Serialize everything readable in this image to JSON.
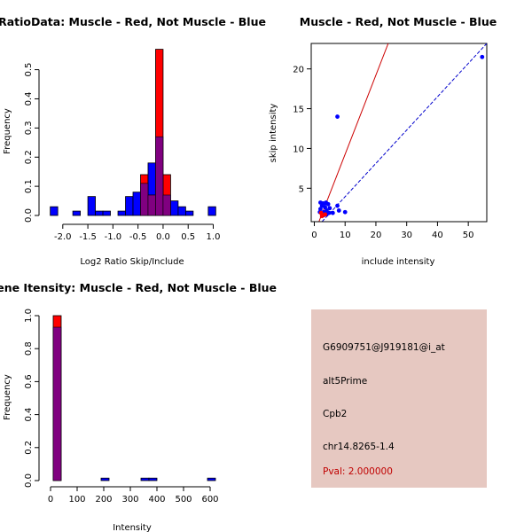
{
  "colors": {
    "muscle": "#ff0000",
    "not_muscle": "#0000ff",
    "overlap": "#800080",
    "ref_line": "#cc0000",
    "fit_line": "#0000cc",
    "panel_bg": "#e6c8c1",
    "pval_text": "#c00000"
  },
  "chart_data": [
    {
      "type": "bar",
      "subtype": "overlaid-histogram",
      "title": "RatioData: Muscle - Red, Not Muscle - Blue",
      "xlabel": "Log2 Ratio Skip/Include",
      "ylabel": "Frequency",
      "xlim": [
        -2.35,
        1.15
      ],
      "ylim": [
        0,
        0.59
      ],
      "xticks": [
        -2.0,
        -1.5,
        -1.0,
        -0.5,
        0.0,
        0.5,
        1.0
      ],
      "xtick_labels": [
        "-2.0",
        "-1.5",
        "-1.0",
        "-0.5",
        "0.0",
        "0.5",
        "1.0"
      ],
      "yticks": [
        0,
        0.1,
        0.2,
        0.3,
        0.4,
        0.5
      ],
      "ytick_labels": [
        "0.0",
        "0.1",
        "0.2",
        "0.3",
        "0.4",
        "0.5"
      ],
      "bin_width": 0.15,
      "series": [
        {
          "name": "Muscle",
          "color": "red",
          "bins": [
            {
              "x0": -0.45,
              "x1": -0.3,
              "value": 0.14
            },
            {
              "x0": -0.3,
              "x1": -0.15,
              "value": 0.07
            },
            {
              "x0": -0.15,
              "x1": 0.0,
              "value": 0.57
            },
            {
              "x0": 0.0,
              "x1": 0.15,
              "value": 0.14
            }
          ]
        },
        {
          "name": "Not Muscle",
          "color": "blue",
          "bins": [
            {
              "x0": -2.25,
              "x1": -2.1,
              "value": 0.03
            },
            {
              "x0": -1.8,
              "x1": -1.65,
              "value": 0.015
            },
            {
              "x0": -1.5,
              "x1": -1.35,
              "value": 0.065
            },
            {
              "x0": -1.35,
              "x1": -1.2,
              "value": 0.015
            },
            {
              "x0": -1.2,
              "x1": -1.05,
              "value": 0.015
            },
            {
              "x0": -0.9,
              "x1": -0.75,
              "value": 0.015
            },
            {
              "x0": -0.75,
              "x1": -0.6,
              "value": 0.065
            },
            {
              "x0": -0.6,
              "x1": -0.45,
              "value": 0.08
            },
            {
              "x0": -0.45,
              "x1": -0.3,
              "value": 0.11
            },
            {
              "x0": -0.3,
              "x1": -0.15,
              "value": 0.18
            },
            {
              "x0": -0.15,
              "x1": 0.0,
              "value": 0.27
            },
            {
              "x0": 0.0,
              "x1": 0.15,
              "value": 0.07
            },
            {
              "x0": 0.15,
              "x1": 0.3,
              "value": 0.05
            },
            {
              "x0": 0.3,
              "x1": 0.45,
              "value": 0.03
            },
            {
              "x0": 0.45,
              "x1": 0.6,
              "value": 0.015
            },
            {
              "x0": 0.9,
              "x1": 1.05,
              "value": 0.03
            }
          ]
        }
      ]
    },
    {
      "type": "scatter",
      "title": "Muscle - Red, Not Muscle - Blue",
      "xlabel": "include intensity",
      "ylabel": "skip intensity",
      "xlim": [
        -1,
        56
      ],
      "ylim": [
        0.8,
        23.2
      ],
      "xticks": [
        0,
        10,
        20,
        30,
        40,
        50
      ],
      "xtick_labels": [
        "0",
        "10",
        "20",
        "30",
        "40",
        "50"
      ],
      "yticks": [
        5,
        10,
        15,
        20
      ],
      "ytick_labels": [
        "5",
        "10",
        "15",
        "20"
      ],
      "lines": [
        {
          "name": "red reference line",
          "color": "red",
          "x": [
            1.5,
            24
          ],
          "y": [
            0.8,
            23.2
          ]
        },
        {
          "name": "blue fit line",
          "color": "blue",
          "x": [
            2.5,
            56
          ],
          "y": [
            0.8,
            23.2
          ]
        }
      ],
      "series": [
        {
          "name": "points",
          "color": "blue",
          "points": [
            [
              54.5,
              21.5
            ],
            [
              7.5,
              14.0
            ],
            [
              10.0,
              2.0
            ],
            [
              8.0,
              2.2
            ],
            [
              7.5,
              2.8
            ],
            [
              6.0,
              1.9
            ],
            [
              5.0,
              2.5
            ],
            [
              4.5,
              3.0
            ],
            [
              4.0,
              2.2
            ],
            [
              3.5,
              3.1
            ],
            [
              3.0,
              2.0
            ],
            [
              2.5,
              2.8
            ],
            [
              2.0,
              2.4
            ],
            [
              2.5,
              1.8
            ],
            [
              3.0,
              1.6
            ],
            [
              2.0,
              3.2
            ],
            [
              4.0,
              1.7
            ],
            [
              3.5,
              2.6
            ],
            [
              1.8,
              2.0
            ],
            [
              3.8,
              3.2
            ],
            [
              2.8,
              3.1
            ],
            [
              4.8,
              1.9
            ]
          ]
        },
        {
          "name": "red points",
          "color": "red",
          "points": [
            [
              2.5,
              1.5
            ],
            [
              3.5,
              1.7
            ],
            [
              2.2,
              1.9
            ]
          ]
        }
      ]
    },
    {
      "type": "bar",
      "subtype": "overlaid-histogram",
      "title": "Gene Itensity: Muscle - Red, Not Muscle - Blue",
      "xlabel": "Intensity",
      "ylabel": "Frequency",
      "xlim": [
        -20,
        640
      ],
      "ylim": [
        0,
        1.0
      ],
      "xticks": [
        0,
        100,
        200,
        300,
        400,
        500,
        600
      ],
      "xtick_labels": [
        "0",
        "100",
        "200",
        "300",
        "400",
        "500",
        "600"
      ],
      "yticks": [
        0,
        0.2,
        0.4,
        0.6,
        0.8,
        1.0
      ],
      "ytick_labels": [
        "0.0",
        "0.2",
        "0.4",
        "0.6",
        "0.8",
        "1.0"
      ],
      "series": [
        {
          "name": "Muscle",
          "color": "red",
          "bins": [
            {
              "x0": 10,
              "x1": 40,
              "value": 1.0
            }
          ]
        },
        {
          "name": "Not Muscle",
          "color": "blue",
          "bins": [
            {
              "x0": 10,
              "x1": 40,
              "value": 0.93
            },
            {
              "x0": 190,
              "x1": 220,
              "value": 0.015
            },
            {
              "x0": 340,
              "x1": 370,
              "value": 0.015
            },
            {
              "x0": 370,
              "x1": 400,
              "value": 0.015
            },
            {
              "x0": 590,
              "x1": 620,
              "value": 0.015
            }
          ]
        }
      ]
    }
  ],
  "info": {
    "probe_id": "G6909751@J919181@i_at",
    "event_type": "alt5Prime",
    "gene": "Cpb2",
    "location": "chr14.8265-1.4",
    "pval": "Pval: 2.000000"
  }
}
